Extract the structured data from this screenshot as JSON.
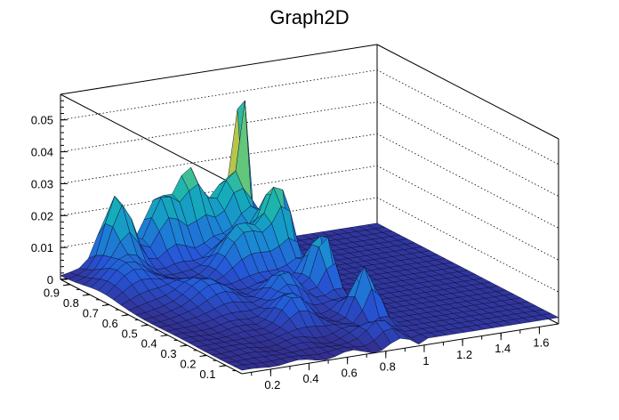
{
  "chart_data": {
    "type": "surface3d",
    "title": "Graph2D",
    "xlabel": "",
    "ylabel": "",
    "zlabel": "",
    "xlim": [
      0.05,
      1.7
    ],
    "ylim": [
      0.02,
      0.95
    ],
    "zlim": [
      0,
      0.058
    ],
    "x_ticks": [
      "0.2",
      "0.4",
      "0.6",
      "0.8",
      "1",
      "1.2",
      "1.4",
      "1.6"
    ],
    "x_tick_values": [
      0.2,
      0.4,
      0.6,
      0.8,
      1.0,
      1.2,
      1.4,
      1.6
    ],
    "y_ticks": [
      "0.1",
      "0.2",
      "0.3",
      "0.4",
      "0.5",
      "0.6",
      "0.7",
      "0.8",
      "0.9"
    ],
    "y_tick_values": [
      0.1,
      0.2,
      0.3,
      0.4,
      0.5,
      0.6,
      0.7,
      0.8,
      0.9
    ],
    "z_ticks": [
      "0",
      "0.01",
      "0.02",
      "0.03",
      "0.04",
      "0.05"
    ],
    "z_tick_values": [
      0,
      0.01,
      0.02,
      0.03,
      0.04,
      0.05
    ],
    "colormap": [
      "#352a87",
      "#2656d8",
      "#1a8ad3",
      "#13b1b6",
      "#5bc680",
      "#b4c44b",
      "#f9d52a",
      "#f9fb0e"
    ],
    "surface": {
      "x_range": [
        0.05,
        1.7
      ],
      "y_range": [
        0.02,
        0.95
      ],
      "nx": 34,
      "ny": 24,
      "base_level": 0.001,
      "cutoff_x": 1.02,
      "cutoff_level": 0.002,
      "peaks": [
        {
          "x": 0.98,
          "y": 0.93,
          "z": 0.048,
          "sx": 0.035,
          "sy": 0.03
        },
        {
          "x": 0.9,
          "y": 0.9,
          "z": 0.018,
          "sx": 0.09,
          "sy": 0.09
        },
        {
          "x": 0.72,
          "y": 0.95,
          "z": 0.022,
          "sx": 0.08,
          "sy": 0.08
        },
        {
          "x": 0.55,
          "y": 0.92,
          "z": 0.018,
          "sx": 0.1,
          "sy": 0.08
        },
        {
          "x": 0.3,
          "y": 0.9,
          "z": 0.022,
          "sx": 0.08,
          "sy": 0.08
        },
        {
          "x": 0.95,
          "y": 0.72,
          "z": 0.022,
          "sx": 0.08,
          "sy": 0.08
        },
        {
          "x": 0.75,
          "y": 0.7,
          "z": 0.015,
          "sx": 0.12,
          "sy": 0.08
        },
        {
          "x": 0.95,
          "y": 0.5,
          "z": 0.017,
          "sx": 0.07,
          "sy": 0.07
        },
        {
          "x": 0.7,
          "y": 0.45,
          "z": 0.009,
          "sx": 0.1,
          "sy": 0.08
        },
        {
          "x": 0.93,
          "y": 0.25,
          "z": 0.016,
          "sx": 0.06,
          "sy": 0.06
        },
        {
          "x": 0.6,
          "y": 0.3,
          "z": 0.008,
          "sx": 0.1,
          "sy": 0.08
        },
        {
          "x": 0.4,
          "y": 0.55,
          "z": 0.007,
          "sx": 0.12,
          "sy": 0.12
        },
        {
          "x": 0.2,
          "y": 0.75,
          "z": 0.008,
          "sx": 0.12,
          "sy": 0.12
        },
        {
          "x": 0.85,
          "y": 0.1,
          "z": 0.006,
          "sx": 0.08,
          "sy": 0.06
        }
      ],
      "slope": {
        "x_weight": 0.006,
        "y_weight": 0.008
      },
      "ripple": 0.0018
    }
  }
}
